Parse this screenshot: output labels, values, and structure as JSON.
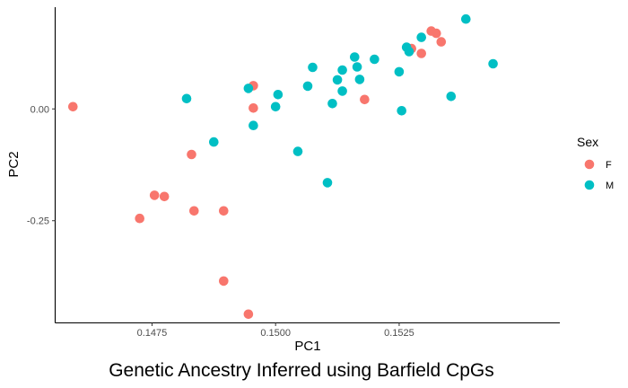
{
  "chart_data": {
    "type": "scatter",
    "title": "Genetic Ancestry Inferred using Barfield CpGs",
    "xlabel": "PC1",
    "ylabel": "PC2",
    "xlim": [
      0.14555,
      0.15575
    ],
    "ylim": [
      -0.4775,
      0.2275
    ],
    "x_ticks": [
      0.1475,
      0.15,
      0.1525
    ],
    "x_tick_labels": [
      "0.1475",
      "0.1500",
      "0.1525"
    ],
    "y_ticks": [
      0.0,
      -0.25
    ],
    "y_tick_labels": [
      "0.00",
      "-0.25"
    ],
    "grid": false,
    "legend_position": "right",
    "legend_title": "Sex",
    "series": [
      {
        "name": "F",
        "color": "#F8766D",
        "points": [
          [
            0.1459,
            0.005
          ],
          [
            0.14955,
            0.052
          ],
          [
            0.14955,
            0.002
          ],
          [
            0.1483,
            -0.102
          ],
          [
            0.14755,
            -0.193
          ],
          [
            0.14775,
            -0.196
          ],
          [
            0.14725,
            -0.245
          ],
          [
            0.14835,
            -0.228
          ],
          [
            0.14895,
            -0.228
          ],
          [
            0.14895,
            -0.385
          ],
          [
            0.14945,
            -0.459
          ],
          [
            0.1518,
            0.021
          ],
          [
            0.15275,
            0.135
          ],
          [
            0.15295,
            0.124
          ],
          [
            0.15315,
            0.174
          ],
          [
            0.15325,
            0.169
          ],
          [
            0.15335,
            0.15
          ]
        ]
      },
      {
        "name": "M",
        "color": "#00BFC4",
        "points": [
          [
            0.1482,
            0.023
          ],
          [
            0.14875,
            -0.074
          ],
          [
            0.14945,
            0.046
          ],
          [
            0.14955,
            -0.037
          ],
          [
            0.15,
            0.005
          ],
          [
            0.15005,
            0.032
          ],
          [
            0.15045,
            -0.095
          ],
          [
            0.15065,
            0.051
          ],
          [
            0.15075,
            0.093
          ],
          [
            0.15105,
            -0.165
          ],
          [
            0.15115,
            0.012
          ],
          [
            0.15125,
            0.065
          ],
          [
            0.15135,
            0.087
          ],
          [
            0.15135,
            0.04
          ],
          [
            0.1516,
            0.116
          ],
          [
            0.15165,
            0.094
          ],
          [
            0.1517,
            0.066
          ],
          [
            0.152,
            0.111
          ],
          [
            0.1525,
            0.083
          ],
          [
            0.15255,
            -0.004
          ],
          [
            0.15265,
            0.138
          ],
          [
            0.1527,
            0.128
          ],
          [
            0.15295,
            0.16
          ],
          [
            0.15355,
            0.028
          ],
          [
            0.15385,
            0.201
          ],
          [
            0.1544,
            0.101
          ]
        ]
      }
    ]
  }
}
